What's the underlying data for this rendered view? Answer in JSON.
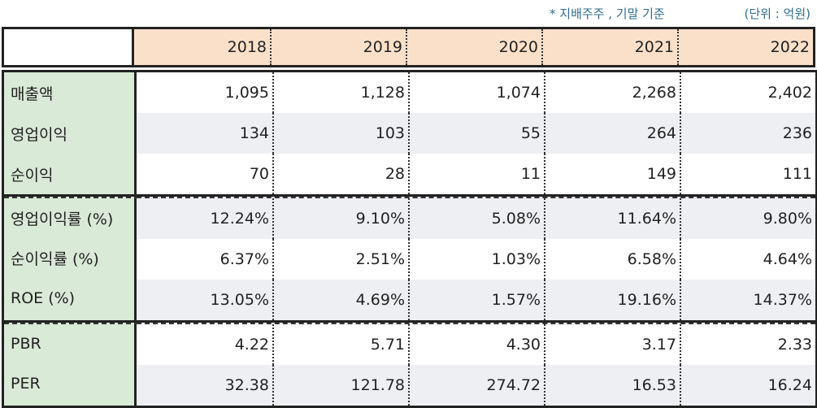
{
  "notes": {
    "basis": "* 지배주주 , 기말 기준",
    "unit": "(단위 : 억원)"
  },
  "years": [
    "2018",
    "2019",
    "2020",
    "2021",
    "2022"
  ],
  "blocks": [
    {
      "rows": [
        {
          "label": "매출액",
          "values": [
            "1,095",
            "1,128",
            "1,074",
            "2,268",
            "2,402"
          ]
        },
        {
          "label": "영업이익",
          "values": [
            "134",
            "103",
            "55",
            "264",
            "236"
          ]
        },
        {
          "label": "순이익",
          "values": [
            "70",
            "28",
            "11",
            "149",
            "111"
          ]
        }
      ]
    },
    {
      "rows": [
        {
          "label": "영업이익률 (%)",
          "values": [
            "12.24%",
            "9.10%",
            "5.08%",
            "11.64%",
            "9.80%"
          ]
        },
        {
          "label": "순이익률 (%)",
          "values": [
            "6.37%",
            "2.51%",
            "1.03%",
            "6.58%",
            "4.64%"
          ]
        },
        {
          "label": "ROE (%)",
          "values": [
            "13.05%",
            "4.69%",
            "1.57%",
            "19.16%",
            "14.37%"
          ]
        }
      ]
    },
    {
      "rows": [
        {
          "label": "PBR",
          "values": [
            "4.22",
            "5.71",
            "4.30",
            "3.17",
            "2.33"
          ]
        },
        {
          "label": "PER",
          "values": [
            "32.38",
            "121.78",
            "274.72",
            "16.53",
            "16.24"
          ]
        }
      ]
    }
  ],
  "colors": {
    "header_bg": "#fbe0c9",
    "label_bg": "#d9ead6",
    "stripe_bg": "#edeff2",
    "note_text": "#2f6d8c"
  }
}
